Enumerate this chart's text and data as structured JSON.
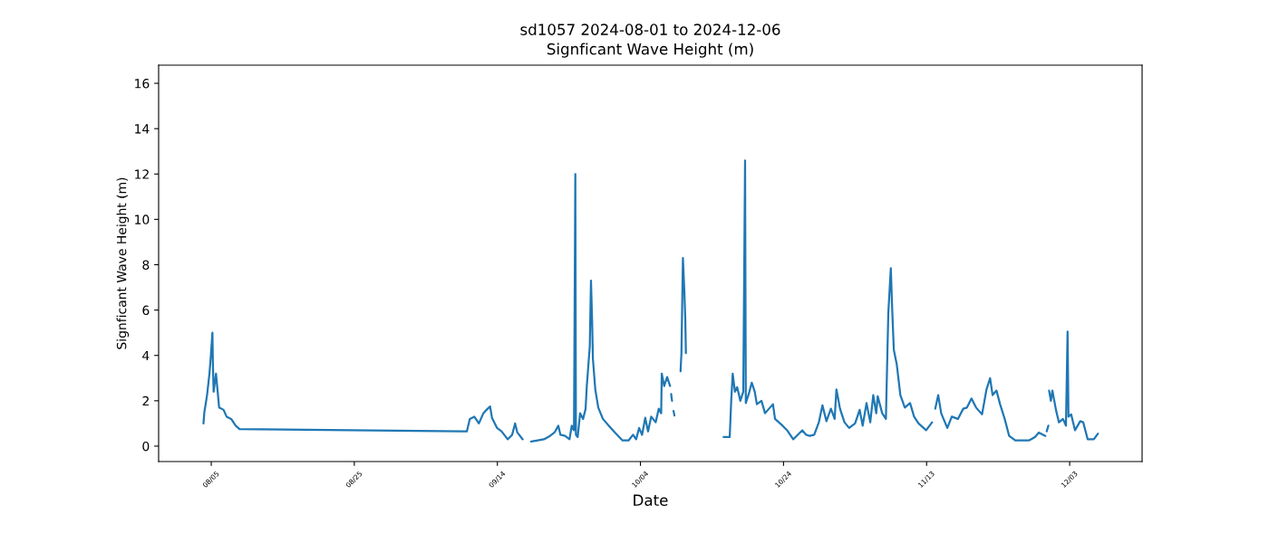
{
  "chart_data": {
    "type": "line",
    "title": "sd1057 2024-08-01 to 2024-12-06",
    "subtitle": "Signficant Wave Height (m)",
    "xlabel": "Date",
    "ylabel": "Signficant Wave Height (m)",
    "color": "#1f77b4",
    "line_style": "solid",
    "x": [
      "2024-08-03T22:00",
      "2024-08-04T01:00",
      "2024-08-04T10:00",
      "2024-08-04T18:00",
      "2024-08-04T22:00",
      "2024-08-05T04:00",
      "2024-08-05T05:30",
      "2024-08-05T08:00",
      "2024-08-05T16:00",
      "2024-08-06T02:30",
      "2024-08-06T17:30",
      "2024-08-07T03:30",
      "2024-08-07T19:00",
      "2024-08-08T10:00",
      "2024-08-08T23:00",
      "2024-09-09T17:30",
      "2024-09-10T03:30",
      "2024-09-10T18:30",
      "2024-09-11T10:00",
      "2024-09-12T01:00",
      "2024-09-12T11:30",
      "2024-09-12T23:30",
      "2024-09-13T06:00",
      "2024-09-13T23:00",
      "2024-09-14T14:00",
      "2024-09-15T10:30",
      "2024-09-16T01:30",
      "2024-09-16T11:30",
      "2024-09-16T19:00",
      "2024-09-17T13:00",
      "2024-09-18T02:00",
      "2024-09-18T17:30",
      "2024-09-19T15:30",
      "2024-09-20T12:00",
      "2024-09-21T08:30",
      "2024-09-21T23:30",
      "2024-09-22T12:30",
      "2024-09-22T19:30",
      "2024-09-23T11:00",
      "2024-09-24T02:00",
      "2024-09-24T09:30",
      "2024-09-24T17:00",
      "2024-09-24T21:30",
      "2024-09-24T23:30",
      "2024-09-25T05:30",
      "2024-09-25T13:30",
      "2024-09-25T23:30",
      "2024-09-26T08:00",
      "2024-09-26T12:00",
      "2024-09-26T18:00",
      "2024-09-26T22:00",
      "2024-09-27T02:00",
      "2024-09-27T06:00",
      "2024-09-27T08:30",
      "2024-09-27T16:30",
      "2024-09-28T02:30",
      "2024-09-28T18:00",
      "2024-09-29T14:00",
      "2024-09-30T10:30",
      "2024-10-01T12:00",
      "2024-10-02T08:00",
      "2024-10-02T23:00",
      "2024-10-03T09:30",
      "2024-10-03T19:30",
      "2024-10-04T05:30",
      "2024-10-04T16:00",
      "2024-10-05T01:30",
      "2024-10-05T12:00",
      "2024-10-06T03:00",
      "2024-10-06T13:30",
      "2024-10-06T21:30",
      "2024-10-06T23:30",
      "2024-10-07T07:30",
      "2024-10-07T17:30",
      "2024-10-08T03:30",
      "2024-10-08T05:00",
      "2024-10-08T07:00",
      "2024-10-08T10:00",
      "2024-10-08T12:00",
      "2024-10-08T15:00",
      "2024-10-08T18:00",
      "2024-10-09T06:00",
      "2024-10-09T14:30",
      "2024-10-09T17:30",
      "2024-10-09T22:30",
      "2024-10-10T03:30",
      "2024-10-10T06:30",
      "2024-10-10T08:30",
      "2024-10-12T00:00",
      "2024-10-15T15:00",
      "2024-10-16T11:30",
      "2024-10-16T16:30",
      "2024-10-16T21:30",
      "2024-10-17T05:00",
      "2024-10-17T12:30",
      "2024-10-17T23:00",
      "2024-10-18T09:00",
      "2024-10-18T15:00",
      "2024-10-18T17:30",
      "2024-10-19T05:30",
      "2024-10-19T13:30",
      "2024-10-19T23:30",
      "2024-10-20T06:30",
      "2024-10-20T22:00",
      "2024-10-21T10:00",
      "2024-10-22T12:30",
      "2024-10-22T19:30",
      "2024-10-23T21:00",
      "2024-10-24T12:00",
      "2024-10-25T08:30",
      "2024-10-25T23:30",
      "2024-10-26T15:00",
      "2024-10-27T04:00",
      "2024-10-27T16:00",
      "2024-10-28T07:00",
      "2024-10-28T22:30",
      "2024-10-29T10:30",
      "2024-10-30T00:00",
      "2024-10-30T15:00",
      "2024-10-31T03:30",
      "2024-10-31T09:30",
      "2024-10-31T21:30",
      "2024-11-01T12:30",
      "2024-11-02T04:00",
      "2024-11-03T00:00",
      "2024-11-03T15:30",
      "2024-11-04T01:30",
      "2024-11-04T14:30",
      "2024-11-05T03:00",
      "2024-11-05T13:00",
      "2024-11-05T23:00",
      "2024-11-06T04:00",
      "2024-11-06T19:00",
      "2024-11-07T07:30",
      "2024-11-07T15:30",
      "2024-11-08T00:00",
      "2024-11-08T04:00",
      "2024-11-08T10:00",
      "2024-11-08T20:00",
      "2024-11-09T08:00",
      "2024-11-09T23:00",
      "2024-11-10T16:30",
      "2024-11-11T06:00",
      "2024-11-11T21:00",
      "2024-11-12T22:30",
      "2024-11-13T18:30",
      "2024-11-14T00:00",
      "2024-11-14T05:00",
      "2024-11-14T15:00",
      "2024-11-15T01:00",
      "2024-11-15T21:30",
      "2024-11-16T12:30",
      "2024-11-17T09:00",
      "2024-11-18T03:00",
      "2024-11-18T15:30",
      "2024-11-19T06:30",
      "2024-11-19T22:00",
      "2024-11-20T18:00",
      "2024-11-21T09:00",
      "2024-11-21T21:00",
      "2024-11-22T05:30",
      "2024-11-22T18:30",
      "2024-11-23T06:30",
      "2024-11-23T22:00",
      "2024-11-24T13:00",
      "2024-11-25T09:30",
      "2024-11-26T06:00",
      "2024-11-27T07:00",
      "2024-11-28T03:30",
      "2024-11-28T16:30",
      "2024-11-29T14:30",
      "2024-11-29T16:30",
      "2024-11-29T19:00",
      "2024-11-30T00:30",
      "2024-11-30T01:30",
      "2024-11-30T03:00",
      "2024-11-30T09:00",
      "2024-11-30T14:00",
      "2024-12-01T02:00",
      "2024-12-01T12:00",
      "2024-12-02T01:30",
      "2024-12-02T11:30",
      "2024-12-02T17:00",
      "2024-12-02T20:00",
      "2024-12-03T05:00",
      "2024-12-03T18:00",
      "2024-12-04T11:30",
      "2024-12-04T21:30",
      "2024-12-05T12:30",
      "2024-12-06T09:00",
      "2024-12-06T23:00"
    ],
    "values": [
      1.0,
      1.5,
      2.25,
      3.2,
      3.85,
      5.0,
      3.7,
      2.4,
      3.2,
      1.7,
      1.6,
      1.3,
      1.2,
      0.9,
      0.75,
      0.65,
      1.2,
      1.3,
      1.0,
      1.45,
      1.6,
      1.75,
      1.25,
      0.8,
      0.65,
      0.3,
      0.5,
      1.0,
      0.6,
      0.3,
      null,
      0.2,
      0.25,
      0.3,
      0.45,
      0.6,
      0.9,
      0.5,
      0.45,
      0.3,
      0.9,
      0.7,
      12.0,
      0.5,
      0.4,
      1.45,
      1.2,
      1.65,
      2.65,
      3.7,
      4.4,
      7.3,
      5.45,
      3.85,
      2.5,
      1.7,
      1.2,
      0.9,
      0.6,
      0.25,
      0.25,
      0.5,
      0.3,
      0.8,
      0.5,
      1.25,
      0.65,
      1.3,
      1.05,
      1.65,
      1.45,
      3.2,
      2.65,
      3.05,
      2.65,
      null,
      2.3,
      2.0,
      null,
      1.55,
      1.35,
      null,
      3.3,
      4.1,
      8.3,
      6.75,
      5.55,
      4.1,
      null,
      0.4,
      0.4,
      2.0,
      3.2,
      2.4,
      2.6,
      2.0,
      2.4,
      12.6,
      1.9,
      2.4,
      2.8,
      2.4,
      1.85,
      2.0,
      1.45,
      1.85,
      1.2,
      0.9,
      0.7,
      0.3,
      0.5,
      0.7,
      0.5,
      0.45,
      0.5,
      1.05,
      1.8,
      1.1,
      1.65,
      1.2,
      2.5,
      1.65,
      1.05,
      0.8,
      1.0,
      1.6,
      0.9,
      1.9,
      1.05,
      2.25,
      1.45,
      2.2,
      1.45,
      1.2,
      5.85,
      7.85,
      6.25,
      4.25,
      3.6,
      2.25,
      1.7,
      1.9,
      1.3,
      1.0,
      0.7,
      1.05,
      null,
      1.65,
      2.25,
      1.45,
      0.8,
      1.3,
      1.2,
      1.65,
      1.7,
      2.1,
      1.7,
      1.4,
      2.5,
      3.0,
      2.25,
      2.45,
      1.85,
      1.2,
      0.45,
      0.25,
      0.25,
      0.25,
      0.4,
      0.6,
      0.45,
      null,
      0.65,
      0.9,
      null,
      2.45,
      2.0,
      2.45,
      1.6,
      1.05,
      1.2,
      0.9,
      5.05,
      1.3,
      1.4,
      0.7,
      1.1,
      1.05,
      0.3,
      0.3,
      0.55
    ],
    "xlim": [
      "2024-07-28T15:30",
      "2024-12-13T03:00"
    ],
    "xticks": [
      {
        "value": "2024-08-05",
        "label": "08/05"
      },
      {
        "value": "2024-08-25",
        "label": "08/25"
      },
      {
        "value": "2024-09-14",
        "label": "09/14"
      },
      {
        "value": "2024-10-04",
        "label": "10/04"
      },
      {
        "value": "2024-10-24",
        "label": "10/24"
      },
      {
        "value": "2024-11-13",
        "label": "11/13"
      },
      {
        "value": "2024-12-03",
        "label": "12/03"
      }
    ],
    "ylim": [
      -0.68,
      16.8
    ],
    "yticks": [
      0,
      2,
      4,
      6,
      8,
      10,
      12,
      14,
      16
    ]
  }
}
